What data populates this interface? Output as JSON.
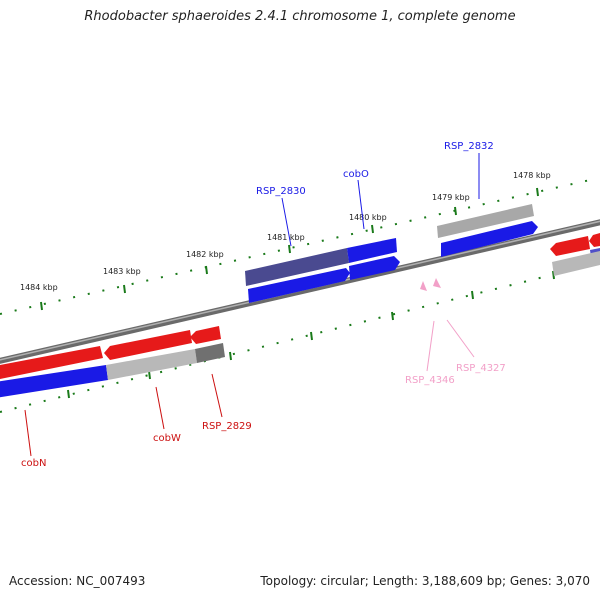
{
  "title": "Rhodobacter sphaeroides 2.4.1 chromosome 1, complete genome",
  "footer": {
    "accession": "Accession: NC_007493",
    "summary": "Topology: circular; Length: 3,188,609 bp; Genes: 3,070"
  },
  "colors": {
    "forward_gene": "#1a1ae6",
    "reverse_gene": "#e61a1a",
    "grey_feature": "#9a9a9a",
    "pseudo_feature": "#f2a0c8",
    "backbone": "#808080",
    "tick": "#1a7a1a"
  },
  "kbp_labels": [
    "1478 kbp",
    "1479 kbp",
    "1480 kbp",
    "1481 kbp",
    "1482 kbp",
    "1483 kbp",
    "1484 kbp"
  ],
  "gene_labels": {
    "forward": [
      "RSP_2832",
      "cobO",
      "RSP_2830"
    ],
    "reverse": [
      "cobN",
      "cobW",
      "RSP_2829"
    ],
    "pseudo": [
      "RSP_4327",
      "RSP_4346"
    ]
  }
}
